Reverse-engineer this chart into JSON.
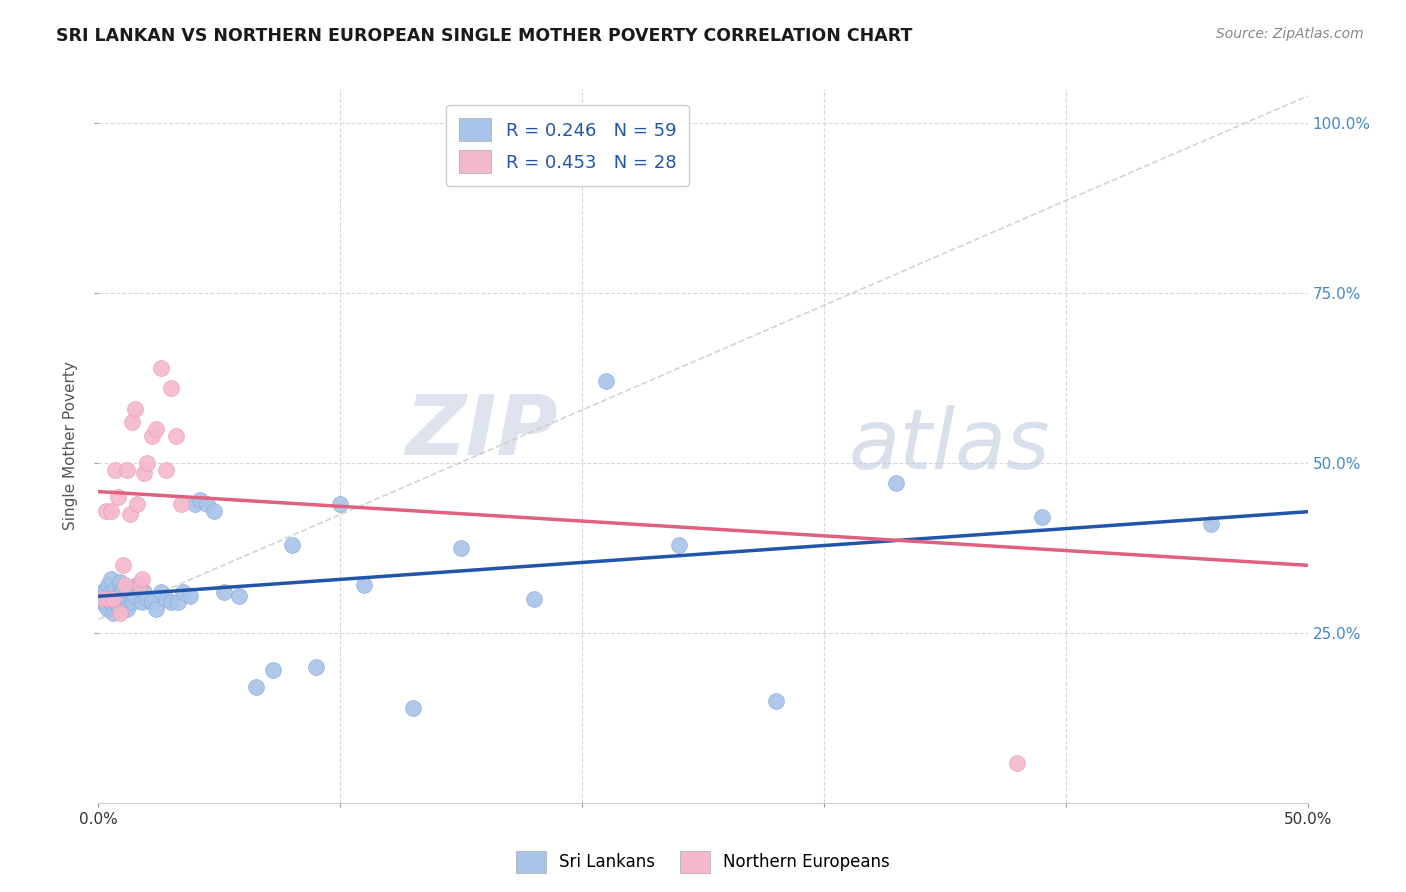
{
  "title": "SRI LANKAN VS NORTHERN EUROPEAN SINGLE MOTHER POVERTY CORRELATION CHART",
  "source": "Source: ZipAtlas.com",
  "ylabel": "Single Mother Poverty",
  "legend_blue_label": "Sri Lankans",
  "legend_pink_label": "Northern Europeans",
  "r_blue": "R = 0.246",
  "n_blue": "N = 59",
  "r_pink": "R = 0.453",
  "n_pink": "N = 28",
  "blue_scatter_x": [
    0.001,
    0.002,
    0.002,
    0.003,
    0.003,
    0.004,
    0.004,
    0.004,
    0.005,
    0.005,
    0.005,
    0.006,
    0.006,
    0.007,
    0.007,
    0.008,
    0.008,
    0.009,
    0.009,
    0.01,
    0.01,
    0.011,
    0.012,
    0.013,
    0.014,
    0.015,
    0.016,
    0.018,
    0.019,
    0.02,
    0.022,
    0.024,
    0.026,
    0.028,
    0.03,
    0.033,
    0.035,
    0.038,
    0.04,
    0.042,
    0.045,
    0.048,
    0.052,
    0.058,
    0.065,
    0.072,
    0.08,
    0.09,
    0.1,
    0.11,
    0.13,
    0.15,
    0.18,
    0.21,
    0.24,
    0.28,
    0.33,
    0.39,
    0.46
  ],
  "blue_scatter_y": [
    0.305,
    0.295,
    0.31,
    0.29,
    0.315,
    0.3,
    0.285,
    0.32,
    0.295,
    0.31,
    0.33,
    0.3,
    0.28,
    0.315,
    0.295,
    0.305,
    0.29,
    0.31,
    0.325,
    0.295,
    0.315,
    0.3,
    0.285,
    0.31,
    0.295,
    0.305,
    0.32,
    0.295,
    0.31,
    0.3,
    0.295,
    0.285,
    0.31,
    0.3,
    0.295,
    0.295,
    0.31,
    0.305,
    0.44,
    0.445,
    0.44,
    0.43,
    0.31,
    0.305,
    0.17,
    0.195,
    0.38,
    0.2,
    0.44,
    0.32,
    0.14,
    0.375,
    0.3,
    0.62,
    0.38,
    0.15,
    0.47,
    0.42,
    0.41
  ],
  "pink_scatter_x": [
    0.002,
    0.003,
    0.004,
    0.005,
    0.006,
    0.007,
    0.008,
    0.009,
    0.01,
    0.011,
    0.012,
    0.013,
    0.014,
    0.015,
    0.016,
    0.017,
    0.018,
    0.019,
    0.02,
    0.022,
    0.024,
    0.026,
    0.028,
    0.03,
    0.032,
    0.034,
    0.2,
    0.38
  ],
  "pink_scatter_y": [
    0.3,
    0.43,
    0.3,
    0.43,
    0.3,
    0.49,
    0.45,
    0.28,
    0.35,
    0.32,
    0.49,
    0.425,
    0.56,
    0.58,
    0.44,
    0.32,
    0.33,
    0.485,
    0.5,
    0.54,
    0.55,
    0.64,
    0.49,
    0.61,
    0.54,
    0.44,
    0.96,
    0.058
  ],
  "blue_color": "#a8c4e8",
  "pink_color": "#f4b8cb",
  "blue_line_color": "#2255aa",
  "pink_line_color": "#e06080",
  "dashed_line_color": "#c8c8c8",
  "background_color": "#ffffff",
  "grid_color": "#d8d8d8",
  "watermark_zip": "ZIP",
  "watermark_atlas": "atlas",
  "xlim": [
    0.0,
    0.5
  ],
  "ylim": [
    0.0,
    1.05
  ],
  "xtick_positions": [
    0.0,
    0.5
  ],
  "xtick_labels": [
    "0.0%",
    "50.0%"
  ],
  "ytick_positions": [
    0.25,
    0.5,
    0.75,
    1.0
  ],
  "ytick_labels": [
    "25.0%",
    "50.0%",
    "75.0%",
    "100.0%"
  ]
}
